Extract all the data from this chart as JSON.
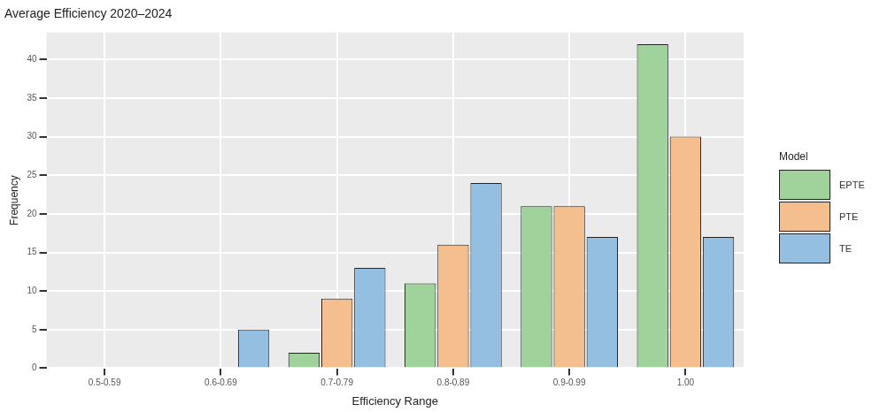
{
  "chart_data": {
    "type": "bar",
    "title": "Average Efficiency 2020–2024",
    "xlabel": "Efficiency Range",
    "ylabel": "Frequency",
    "legend_title": "Model",
    "categories": [
      "0.5-0.59",
      "0.6-0.69",
      "0.7-0.79",
      "0.8-0.89",
      "0.9-0.99",
      "1.00"
    ],
    "series": [
      {
        "name": "EPTE",
        "color": "#9fd39b",
        "values": [
          0,
          0,
          2,
          11,
          21,
          42
        ]
      },
      {
        "name": "PTE",
        "color": "#f5be8e",
        "values": [
          0,
          0,
          9,
          16,
          21,
          30
        ]
      },
      {
        "name": "TE",
        "color": "#94bfe0",
        "values": [
          0,
          5,
          13,
          24,
          17,
          17
        ]
      }
    ],
    "ylim": [
      0,
      43.5
    ],
    "yticks": [
      0,
      5,
      10,
      15,
      20,
      25,
      30,
      35,
      40
    ],
    "grid": true,
    "legend": "right"
  }
}
